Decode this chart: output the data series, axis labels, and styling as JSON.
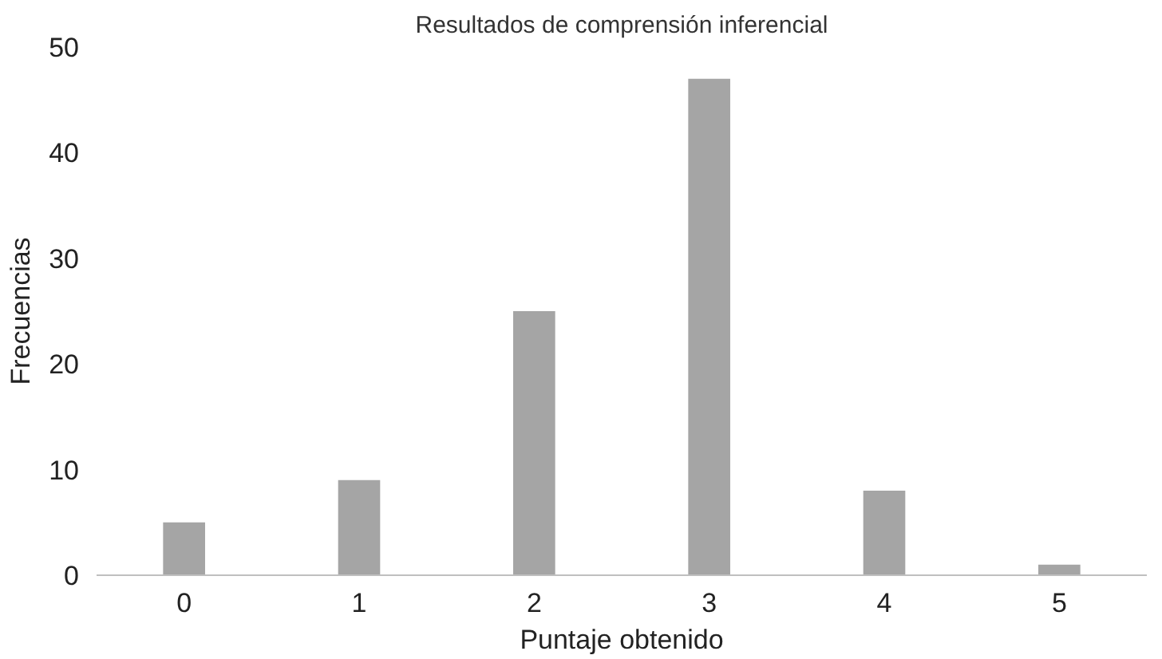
{
  "chart_data": {
    "type": "bar",
    "title": "Resultados de comprensión inferencial",
    "xlabel": "Puntaje obtenido",
    "ylabel": "Frecuencias",
    "categories": [
      "0",
      "1",
      "2",
      "3",
      "4",
      "5"
    ],
    "values": [
      5,
      9,
      25,
      47,
      8,
      1
    ],
    "color": "#a5a5a5",
    "ylim": [
      0,
      50
    ],
    "yticks": [
      0,
      10,
      20,
      30,
      40,
      50
    ],
    "grid": false
  }
}
